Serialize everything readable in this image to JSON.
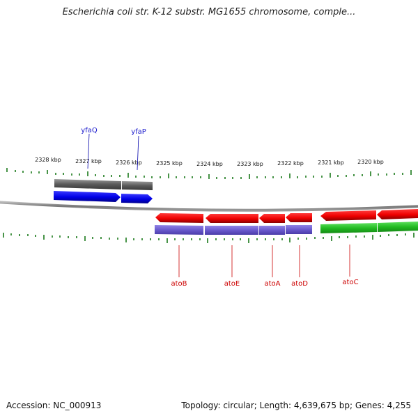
{
  "title": "Escherichia coli str. K-12 substr. MG1655 chromosome, comple...",
  "footer": {
    "accession": "Accession: NC_000913",
    "topology": "Topology: circular; Length: 4,639,675 bp; Genes: 4,255"
  },
  "scale_labels": [
    "2328 kbp",
    "2327 kbp",
    "2326 kbp",
    "2325 kbp",
    "2324 kbp",
    "2323 kbp",
    "2322 kbp",
    "2321 kbp",
    "2320 kbp"
  ],
  "genes": {
    "forward": [
      {
        "name": "yfaQ",
        "color": "#1a1acc"
      },
      {
        "name": "yfaP",
        "color": "#1a1acc"
      }
    ],
    "reverse": [
      {
        "name": "atoB",
        "color": "#cc0000"
      },
      {
        "name": "atoE",
        "color": "#cc0000"
      },
      {
        "name": "atoA",
        "color": "#cc0000"
      },
      {
        "name": "atoD",
        "color": "#cc0000"
      },
      {
        "name": "atoC",
        "color": "#cc0000"
      }
    ]
  },
  "colors": {
    "forward_cds": "#0000ee",
    "reverse_cds": "#ee0000",
    "forward_gene_bar": "#666666",
    "reverse_gene_bar_blue": "#6a5acd",
    "reverse_gene_bar_green": "#22bb22",
    "tick": "#1a7a1a",
    "backbone": "#888888"
  }
}
